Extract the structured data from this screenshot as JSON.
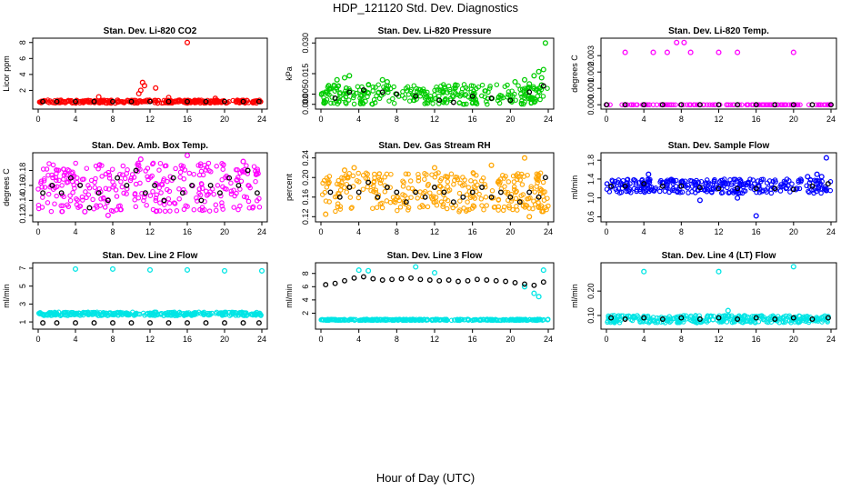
{
  "title": "HDP_121120  Std. Dev. Diagnostics",
  "xlabel": "Hour of Day (UTC)",
  "colors": {
    "co2": "#ff0000",
    "pressure": "#00cc00",
    "temp": "#ff00ff",
    "box": "#ff00ff",
    "rh": "#ffa500",
    "flow": "#0000ff",
    "line": "#00e5e5",
    "mean": "#000000"
  },
  "chart_data": [
    {
      "type": "scatter",
      "id": "co2",
      "title": "Stan. Dev. Li-820 CO2",
      "ylabel": "Licor ppm",
      "xlim": [
        0,
        24
      ],
      "ylim": [
        0,
        8.2
      ],
      "yticks": [
        "2",
        "4",
        "6",
        "8"
      ],
      "xticks": [
        "0",
        "4",
        "8",
        "12",
        "16",
        "20",
        "24"
      ],
      "band": [
        0.4,
        0.8
      ],
      "extra_points": [
        [
          11.0,
          2.0
        ],
        [
          11.2,
          3.0
        ],
        [
          11.4,
          2.6
        ],
        [
          10.8,
          1.6
        ],
        [
          12.6,
          2.3
        ],
        [
          16.0,
          8.0
        ],
        [
          6.5,
          1.2
        ],
        [
          14.0,
          1.1
        ],
        [
          19.0,
          1.0
        ]
      ],
      "mean_points": [
        [
          0.5,
          0.6
        ],
        [
          2,
          0.6
        ],
        [
          4,
          0.6
        ],
        [
          6,
          0.6
        ],
        [
          8,
          0.6
        ],
        [
          10,
          0.6
        ],
        [
          12,
          0.6
        ],
        [
          14,
          0.6
        ],
        [
          16,
          0.6
        ],
        [
          18,
          0.6
        ],
        [
          20,
          0.6
        ],
        [
          22,
          0.6
        ],
        [
          23.7,
          0.6
        ]
      ]
    },
    {
      "type": "scatter",
      "id": "pressure",
      "title": "Stan. Dev. Li-820 Pressure",
      "ylabel": "kPa",
      "xlim": [
        0,
        24
      ],
      "ylim": [
        -0.001,
        0.031
      ],
      "yticks": [
        "0.000",
        "0.005",
        "0.015",
        "0.030"
      ],
      "ytick_values": [
        0.0,
        0.005,
        0.015,
        0.03
      ],
      "xticks": [
        "0",
        "4",
        "8",
        "12",
        "16",
        "20",
        "24"
      ],
      "band": [
        0.0,
        0.01
      ],
      "extra_points": [
        [
          2.5,
          0.013
        ],
        [
          3.0,
          0.014
        ],
        [
          1.7,
          0.012
        ],
        [
          6.5,
          0.012
        ],
        [
          7.0,
          0.011
        ],
        [
          20.5,
          0.011
        ],
        [
          21.5,
          0.012
        ],
        [
          22.5,
          0.014
        ],
        [
          23.0,
          0.016
        ],
        [
          23.5,
          0.017
        ],
        [
          23.7,
          0.03
        ],
        [
          23.3,
          0.013
        ],
        [
          22.0,
          0.01
        ]
      ],
      "mean_points": [
        [
          1.5,
          0.003
        ],
        [
          3,
          0.006
        ],
        [
          4.5,
          0.007
        ],
        [
          6.5,
          0.006
        ],
        [
          8,
          0.005
        ],
        [
          10,
          0.004
        ],
        [
          12.5,
          0.002
        ],
        [
          14,
          0.001
        ],
        [
          16,
          0.004
        ],
        [
          18,
          0.003
        ],
        [
          20,
          0.002
        ],
        [
          22,
          0.006
        ],
        [
          23.5,
          0.009
        ]
      ]
    },
    {
      "type": "scatter",
      "id": "temp",
      "title": "Stan. Dev. Li-820 Temp.",
      "ylabel": "degrees C",
      "xlim": [
        0,
        24
      ],
      "ylim": [
        -0.0001,
        0.0039
      ],
      "yticks": [
        "0.000",
        "0.001",
        "0.002",
        "0.003"
      ],
      "ytick_values": [
        0.0,
        0.001,
        0.002,
        0.003
      ],
      "xticks": [
        "0",
        "4",
        "8",
        "12",
        "16",
        "20",
        "24"
      ],
      "band": [
        0.0,
        0.0
      ],
      "extra_points": [
        [
          2.0,
          0.0032
        ],
        [
          5.0,
          0.0032
        ],
        [
          6.5,
          0.0032
        ],
        [
          7.5,
          0.0038
        ],
        [
          8.3,
          0.0038
        ],
        [
          9.0,
          0.0032
        ],
        [
          12.0,
          0.0032
        ],
        [
          14.0,
          0.0032
        ],
        [
          20.0,
          0.0032
        ]
      ],
      "mean_points": [
        [
          0,
          0
        ],
        [
          2,
          0
        ],
        [
          4,
          0
        ],
        [
          6,
          0
        ],
        [
          8,
          0
        ],
        [
          10,
          0
        ],
        [
          12,
          0
        ],
        [
          14,
          0
        ],
        [
          16,
          0
        ],
        [
          18,
          0
        ],
        [
          20,
          0
        ],
        [
          22,
          0
        ],
        [
          24,
          0
        ]
      ]
    },
    {
      "type": "scatter",
      "id": "box",
      "title": "Stan. Dev. Amb. Box Temp.",
      "ylabel": "degrees C",
      "xlim": [
        0,
        24
      ],
      "ylim": [
        0.115,
        0.2
      ],
      "yticks": [
        "0.12",
        "0.14",
        "0.16",
        "0.18"
      ],
      "ytick_values": [
        0.12,
        0.14,
        0.16,
        0.18
      ],
      "xticks": [
        "0",
        "4",
        "8",
        "12",
        "16",
        "20",
        "24"
      ],
      "band": [
        0.125,
        0.19
      ],
      "extra_points": [
        [
          7.5,
          0.12
        ],
        [
          16,
          0.2
        ],
        [
          11,
          0.195
        ],
        [
          5,
          0.125
        ],
        [
          22,
          0.192
        ]
      ],
      "mean_points": [
        [
          0.5,
          0.15
        ],
        [
          1.5,
          0.16
        ],
        [
          2.5,
          0.15
        ],
        [
          3.5,
          0.17
        ],
        [
          4.5,
          0.16
        ],
        [
          5.5,
          0.13
        ],
        [
          6.5,
          0.15
        ],
        [
          7.5,
          0.14
        ],
        [
          8.5,
          0.17
        ],
        [
          9.5,
          0.16
        ],
        [
          10.5,
          0.18
        ],
        [
          11.5,
          0.15
        ],
        [
          12.5,
          0.16
        ],
        [
          13.5,
          0.14
        ],
        [
          14.5,
          0.17
        ],
        [
          15.5,
          0.15
        ],
        [
          16.5,
          0.16
        ],
        [
          17.5,
          0.14
        ],
        [
          18.5,
          0.16
        ],
        [
          19.5,
          0.15
        ],
        [
          20.5,
          0.17
        ],
        [
          21.5,
          0.16
        ],
        [
          22.5,
          0.18
        ],
        [
          23.5,
          0.15
        ]
      ]
    },
    {
      "type": "scatter",
      "id": "rh",
      "title": "Stan. Dev. Gas Stream RH",
      "ylabel": "percent",
      "xlim": [
        0,
        24
      ],
      "ylim": [
        0.115,
        0.245
      ],
      "yticks": [
        "0.12",
        "0.16",
        "0.20",
        "0.24"
      ],
      "ytick_values": [
        0.12,
        0.16,
        0.2,
        0.24
      ],
      "xticks": [
        "0",
        "4",
        "8",
        "12",
        "16",
        "20",
        "24"
      ],
      "band": [
        0.13,
        0.21
      ],
      "extra_points": [
        [
          2.5,
          0.215
        ],
        [
          3.5,
          0.22
        ],
        [
          12,
          0.22
        ],
        [
          18,
          0.225
        ],
        [
          21.5,
          0.24
        ],
        [
          22,
          0.12
        ],
        [
          0.5,
          0.125
        ]
      ],
      "mean_points": [
        [
          1,
          0.17
        ],
        [
          2,
          0.16
        ],
        [
          3,
          0.18
        ],
        [
          4,
          0.17
        ],
        [
          5,
          0.19
        ],
        [
          6,
          0.16
        ],
        [
          7,
          0.18
        ],
        [
          8,
          0.17
        ],
        [
          9,
          0.15
        ],
        [
          10,
          0.17
        ],
        [
          11,
          0.16
        ],
        [
          12,
          0.18
        ],
        [
          13,
          0.17
        ],
        [
          14,
          0.15
        ],
        [
          15,
          0.16
        ],
        [
          16,
          0.17
        ],
        [
          17,
          0.18
        ],
        [
          18,
          0.16
        ],
        [
          19,
          0.17
        ],
        [
          20,
          0.16
        ],
        [
          21,
          0.15
        ],
        [
          22,
          0.17
        ],
        [
          23,
          0.16
        ],
        [
          23.7,
          0.2
        ]
      ]
    },
    {
      "type": "scatter",
      "id": "flow",
      "title": "Stan. Dev. Sample Flow",
      "ylabel": "ml/min",
      "xlim": [
        0,
        24
      ],
      "ylim": [
        0.55,
        1.9
      ],
      "yticks": [
        "0.6",
        "1.0",
        "1.4",
        "1.8"
      ],
      "ytick_values": [
        0.6,
        1.0,
        1.4,
        1.8
      ],
      "xticks": [
        "0",
        "4",
        "8",
        "12",
        "16",
        "20",
        "24"
      ],
      "band": [
        1.1,
        1.4
      ],
      "extra_points": [
        [
          16,
          0.62
        ],
        [
          23.5,
          1.85
        ],
        [
          10,
          0.95
        ],
        [
          14,
          1.0
        ],
        [
          4.5,
          1.5
        ],
        [
          22.5,
          1.5
        ],
        [
          23.0,
          1.45
        ],
        [
          21.5,
          1.45
        ]
      ],
      "mean_points": [
        [
          0.5,
          1.25
        ],
        [
          2,
          1.25
        ],
        [
          4,
          1.3
        ],
        [
          6,
          1.25
        ],
        [
          8,
          1.25
        ],
        [
          10,
          1.22
        ],
        [
          12,
          1.2
        ],
        [
          14,
          1.2
        ],
        [
          16,
          1.2
        ],
        [
          18,
          1.2
        ],
        [
          20,
          1.18
        ],
        [
          22,
          1.25
        ],
        [
          23.7,
          1.3
        ]
      ]
    },
    {
      "type": "scatter",
      "id": "line2",
      "title": "Stan. Dev. Line 2 Flow",
      "ylabel": "ml/min",
      "xlim": [
        0,
        24
      ],
      "ylim": [
        0.5,
        7.3
      ],
      "yticks": [
        "1",
        "3",
        "5",
        "7"
      ],
      "ytick_values": [
        1,
        3,
        5,
        7
      ],
      "xticks": [
        "0",
        "4",
        "8",
        "12",
        "16",
        "20",
        "24"
      ],
      "band": [
        1.7,
        2.1
      ],
      "extra_points": [
        [
          4,
          6.9
        ],
        [
          8,
          6.9
        ],
        [
          12,
          6.8
        ],
        [
          16,
          6.8
        ],
        [
          20,
          6.7
        ],
        [
          24,
          6.7
        ]
      ],
      "mean_points": [
        [
          0.5,
          0.9
        ],
        [
          2,
          0.9
        ],
        [
          4,
          0.9
        ],
        [
          6,
          0.9
        ],
        [
          8,
          0.9
        ],
        [
          10,
          0.9
        ],
        [
          12,
          0.9
        ],
        [
          14,
          0.9
        ],
        [
          16,
          0.9
        ],
        [
          18,
          0.9
        ],
        [
          20,
          0.9
        ],
        [
          22,
          0.9
        ],
        [
          23.7,
          0.9
        ]
      ]
    },
    {
      "type": "scatter",
      "id": "line3",
      "title": "Stan. Dev. Line 3 Flow",
      "ylabel": "ml/min",
      "xlim": [
        0,
        24
      ],
      "ylim": [
        0,
        9.2
      ],
      "yticks": [
        "2",
        "4",
        "6",
        "8"
      ],
      "ytick_values": [
        2,
        4,
        6,
        8
      ],
      "xticks": [
        "0",
        "4",
        "8",
        "12",
        "16",
        "20",
        "24"
      ],
      "band": [
        0.9,
        1.1
      ],
      "extra_points": [
        [
          10,
          9.0
        ],
        [
          4,
          8.5
        ],
        [
          5,
          8.4
        ],
        [
          12,
          8.1
        ],
        [
          22.5,
          5.0
        ],
        [
          23,
          4.5
        ],
        [
          23.5,
          8.5
        ],
        [
          21.5,
          6.0
        ]
      ],
      "mean_points": [
        [
          0.5,
          6.3
        ],
        [
          1.5,
          6.5
        ],
        [
          2.5,
          6.9
        ],
        [
          3.5,
          7.3
        ],
        [
          4.5,
          7.5
        ],
        [
          5.5,
          7.2
        ],
        [
          6.5,
          7.0
        ],
        [
          7.5,
          7.1
        ],
        [
          8.5,
          7.2
        ],
        [
          9.5,
          7.3
        ],
        [
          10.5,
          7.1
        ],
        [
          11.5,
          7.0
        ],
        [
          12.5,
          6.9
        ],
        [
          13.5,
          7.0
        ],
        [
          14.5,
          6.8
        ],
        [
          15.5,
          6.9
        ],
        [
          16.5,
          7.1
        ],
        [
          17.5,
          7.0
        ],
        [
          18.5,
          6.9
        ],
        [
          19.5,
          6.8
        ],
        [
          20.5,
          6.6
        ],
        [
          21.5,
          6.4
        ],
        [
          22.5,
          6.2
        ],
        [
          23.5,
          6.7
        ]
      ]
    },
    {
      "type": "scatter",
      "id": "line4",
      "title": "Stan. Dev. Line 4 (LT) Flow",
      "ylabel": "ml/min",
      "xlim": [
        0,
        24
      ],
      "ylim": [
        0.055,
        0.305
      ],
      "yticks": [
        "0.10",
        "0.20"
      ],
      "ytick_values": [
        0.1,
        0.2
      ],
      "xticks": [
        "0",
        "4",
        "8",
        "12",
        "16",
        "20",
        "24"
      ],
      "band": [
        0.07,
        0.1
      ],
      "extra_points": [
        [
          4,
          0.28
        ],
        [
          12,
          0.28
        ],
        [
          20,
          0.3
        ],
        [
          13,
          0.12
        ]
      ],
      "mean_points": [
        [
          0.5,
          0.09
        ],
        [
          2,
          0.085
        ],
        [
          4,
          0.09
        ],
        [
          6,
          0.085
        ],
        [
          8,
          0.09
        ],
        [
          10,
          0.085
        ],
        [
          12,
          0.09
        ],
        [
          14,
          0.085
        ],
        [
          16,
          0.09
        ],
        [
          18,
          0.085
        ],
        [
          20,
          0.09
        ],
        [
          22,
          0.085
        ],
        [
          23.7,
          0.09
        ]
      ]
    }
  ]
}
